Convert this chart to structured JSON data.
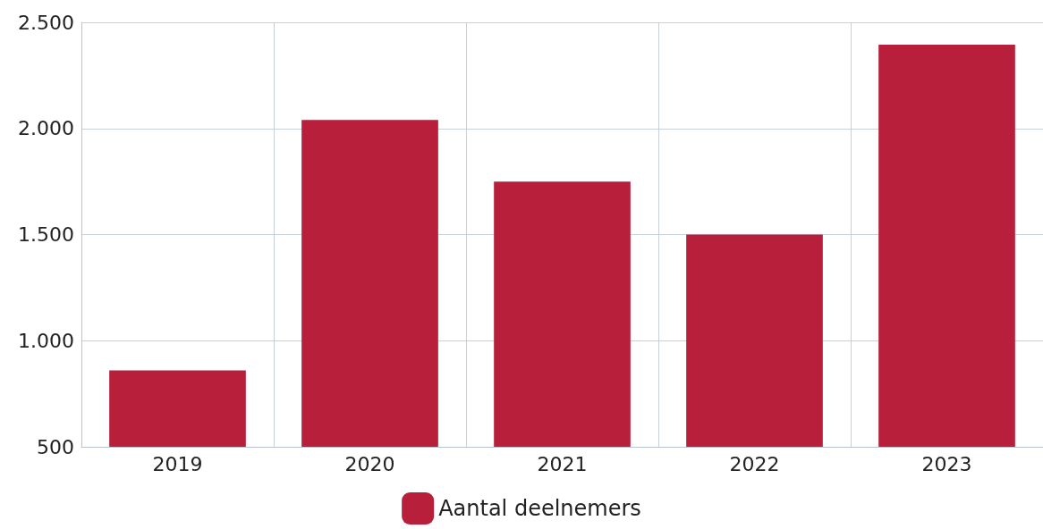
{
  "chart_data": {
    "type": "bar",
    "categories": [
      "2019",
      "2020",
      "2021",
      "2022",
      "2023"
    ],
    "series": [
      {
        "name": "Aantal deelnemers",
        "color": "#b71f3a",
        "values": [
          860,
          2040,
          1750,
          1500,
          2395
        ]
      }
    ],
    "ylim": [
      500,
      2500
    ],
    "yticks": [
      {
        "value": 500,
        "label": "500"
      },
      {
        "value": 1000,
        "label": "1.000"
      },
      {
        "value": 1500,
        "label": "1.500"
      },
      {
        "value": 2000,
        "label": "2.000"
      },
      {
        "value": 2500,
        "label": "2.500"
      }
    ],
    "grid": true,
    "legend": "bottom"
  }
}
